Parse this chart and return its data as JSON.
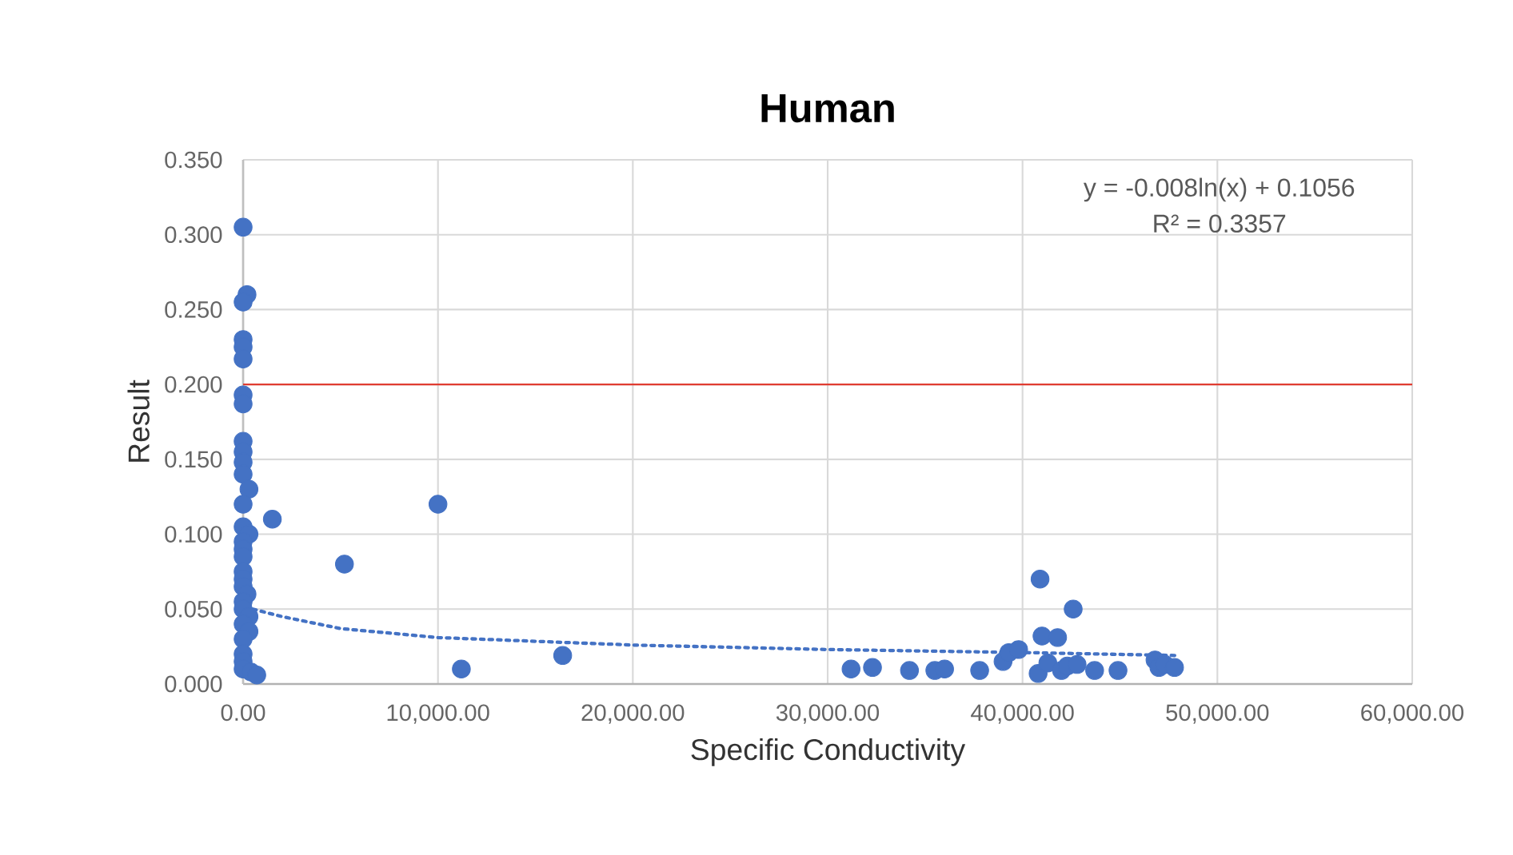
{
  "chart_data": {
    "type": "scatter",
    "title": "Human",
    "xlabel": "Specific Conductivity",
    "ylabel": "Result",
    "xlim": [
      0,
      60000
    ],
    "ylim": [
      0,
      0.35
    ],
    "xticks": [
      {
        "value": 0,
        "label": "0.00"
      },
      {
        "value": 10000,
        "label": "10,000.00"
      },
      {
        "value": 20000,
        "label": "20,000.00"
      },
      {
        "value": 30000,
        "label": "30,000.00"
      },
      {
        "value": 40000,
        "label": "40,000.00"
      },
      {
        "value": 50000,
        "label": "50,000.00"
      },
      {
        "value": 60000,
        "label": "60,000.00"
      }
    ],
    "yticks": [
      {
        "value": 0,
        "label": "0.000"
      },
      {
        "value": 0.05,
        "label": "0.050"
      },
      {
        "value": 0.1,
        "label": "0.100"
      },
      {
        "value": 0.15,
        "label": "0.150"
      },
      {
        "value": 0.2,
        "label": "0.200"
      },
      {
        "value": 0.25,
        "label": "0.250"
      },
      {
        "value": 0.3,
        "label": "0.300"
      },
      {
        "value": 0.35,
        "label": "0.350"
      }
    ],
    "grid": true,
    "series": [
      {
        "marker": "circle",
        "color": "#4472c4",
        "x": [
          0,
          200,
          0,
          0,
          0,
          0,
          0,
          0,
          0,
          0,
          0,
          0,
          300,
          0,
          1500,
          0,
          300,
          0,
          0,
          0,
          0,
          0,
          0,
          200,
          0,
          0,
          300,
          0,
          300,
          0,
          0,
          0,
          0,
          400,
          700,
          5200,
          10000,
          11200,
          16400,
          31200,
          32300,
          34200,
          35500,
          36000,
          37800,
          39000,
          39300,
          39800,
          40800,
          40900,
          41000,
          41300,
          41800,
          42000,
          42300,
          42600,
          42800,
          43700,
          44900,
          46800,
          47000,
          47300,
          47800
        ],
        "values": [
          0.305,
          0.26,
          0.255,
          0.23,
          0.225,
          0.217,
          0.193,
          0.187,
          0.162,
          0.155,
          0.148,
          0.14,
          0.13,
          0.12,
          0.11,
          0.105,
          0.1,
          0.095,
          0.09,
          0.085,
          0.075,
          0.07,
          0.065,
          0.06,
          0.055,
          0.05,
          0.045,
          0.04,
          0.035,
          0.03,
          0.02,
          0.015,
          0.01,
          0.008,
          0.006,
          0.08,
          0.12,
          0.01,
          0.019,
          0.01,
          0.011,
          0.009,
          0.009,
          0.01,
          0.009,
          0.015,
          0.021,
          0.023,
          0.007,
          0.07,
          0.032,
          0.014,
          0.031,
          0.009,
          0.012,
          0.05,
          0.013,
          0.009,
          0.009,
          0.016,
          0.011,
          0.013,
          0.011
        ]
      },
      {
        "type": "line",
        "marker": "none",
        "line_style": "dotted",
        "color": "#4472c4",
        "x": [
          500,
          2000,
          5000,
          10000,
          20000,
          30000,
          40000,
          48000
        ],
        "values": [
          0.05,
          0.045,
          0.037,
          0.031,
          0.026,
          0.023,
          0.021,
          0.019
        ]
      }
    ],
    "ref_lines": [
      {
        "axis": "y",
        "value": 0.2,
        "color": "#e03c31"
      }
    ],
    "annotations": [
      "y = -0.008ln(x) + 0.1056",
      "R² = 0.3357"
    ]
  }
}
